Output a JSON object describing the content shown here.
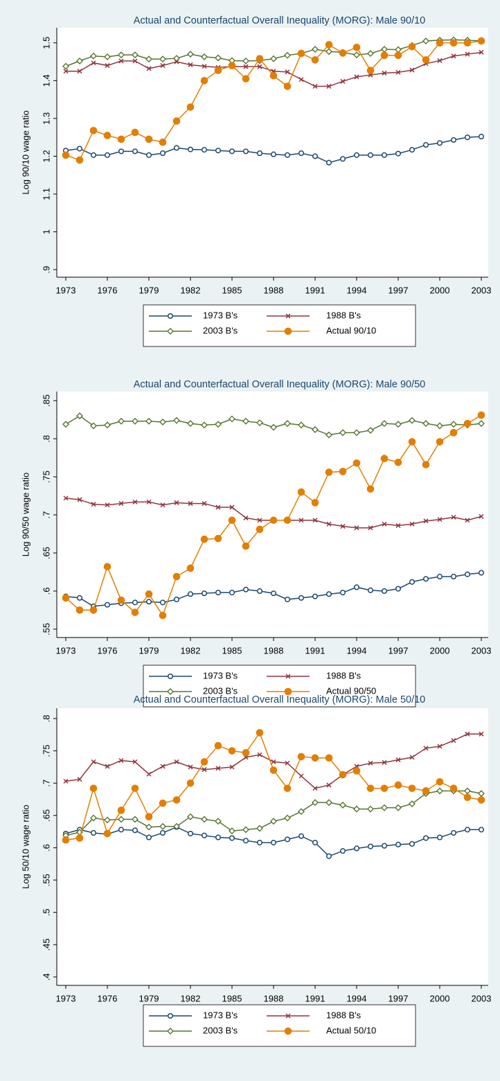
{
  "chart_data": [
    {
      "type": "line",
      "title": "Actual and Counterfactual Overall Inequality (MORG): Male 90/10",
      "y_label": "Log 90/10 wage ratio",
      "x": [
        1973,
        1974,
        1975,
        1976,
        1977,
        1978,
        1979,
        1980,
        1981,
        1982,
        1983,
        1984,
        1985,
        1986,
        1987,
        1988,
        1989,
        1990,
        1991,
        1992,
        1993,
        1994,
        1995,
        1996,
        1997,
        1998,
        1999,
        2000,
        2001,
        2002,
        2003
      ],
      "xlim": [
        1972.35,
        2003.5
      ],
      "xticks": [
        1973,
        1976,
        1979,
        1982,
        1985,
        1988,
        1991,
        1994,
        1997,
        2000,
        2003
      ],
      "ylim": [
        0.88,
        1.54
      ],
      "yticks": [
        {
          "value": 0.9,
          "label": ".9"
        },
        1,
        1.1,
        1.2,
        1.3,
        1.4,
        1.5
      ],
      "series": [
        {
          "name": "1973 B's",
          "color": "#1a476f",
          "values": [
            1.215,
            1.22,
            1.203,
            1.203,
            1.213,
            1.213,
            1.203,
            1.208,
            1.222,
            1.218,
            1.217,
            1.215,
            1.213,
            1.213,
            1.208,
            1.205,
            1.203,
            1.208,
            1.2,
            1.183,
            1.193,
            1.203,
            1.203,
            1.203,
            1.207,
            1.217,
            1.23,
            1.235,
            1.243,
            1.25,
            1.252
          ]
        },
        {
          "name": "1988 B's",
          "color": "#90353b",
          "values": [
            1.425,
            1.425,
            1.447,
            1.44,
            1.452,
            1.452,
            1.432,
            1.44,
            1.45,
            1.442,
            1.438,
            1.435,
            1.437,
            1.437,
            1.437,
            1.425,
            1.423,
            1.403,
            1.385,
            1.385,
            1.398,
            1.41,
            1.415,
            1.42,
            1.422,
            1.428,
            1.445,
            1.453,
            1.465,
            1.47,
            1.475
          ]
        },
        {
          "name": "2003 B's",
          "color": "#55752f",
          "values": [
            1.438,
            1.452,
            1.465,
            1.463,
            1.468,
            1.468,
            1.457,
            1.457,
            1.459,
            1.47,
            1.463,
            1.46,
            1.453,
            1.452,
            1.453,
            1.458,
            1.467,
            1.472,
            1.483,
            1.477,
            1.475,
            1.468,
            1.472,
            1.483,
            1.482,
            1.493,
            1.505,
            1.507,
            1.508,
            1.507,
            1.505
          ]
        },
        {
          "name": "Actual 90/10",
          "color": "#e37e00",
          "values": [
            1.203,
            1.19,
            1.268,
            1.255,
            1.245,
            1.263,
            1.245,
            1.237,
            1.293,
            1.33,
            1.4,
            1.427,
            1.44,
            1.405,
            1.458,
            1.413,
            1.385,
            1.472,
            1.455,
            1.495,
            1.473,
            1.488,
            1.427,
            1.467,
            1.467,
            1.49,
            1.455,
            1.5,
            1.5,
            1.5,
            1.505
          ]
        }
      ]
    },
    {
      "type": "line",
      "title": "Actual and Counterfactual Overall Inequality (MORG): Male 90/50",
      "y_label": "Log 90/50 wage ratio",
      "x": [
        1973,
        1974,
        1975,
        1976,
        1977,
        1978,
        1979,
        1980,
        1981,
        1982,
        1983,
        1984,
        1985,
        1986,
        1987,
        1988,
        1989,
        1990,
        1991,
        1992,
        1993,
        1994,
        1995,
        1996,
        1997,
        1998,
        1999,
        2000,
        2001,
        2002,
        2003
      ],
      "xlim": [
        1972.35,
        2003.5
      ],
      "xticks": [
        1973,
        1976,
        1979,
        1982,
        1985,
        1988,
        1991,
        1994,
        1997,
        2000,
        2003
      ],
      "ylim": [
        0.539,
        0.862
      ],
      "yticks": [
        {
          "value": 0.55,
          "label": ".55"
        },
        {
          "value": 0.6,
          "label": ".6"
        },
        {
          "value": 0.65,
          "label": ".65"
        },
        {
          "value": 0.7,
          "label": ".7"
        },
        {
          "value": 0.75,
          "label": ".75"
        },
        {
          "value": 0.8,
          "label": ".8"
        },
        {
          "value": 0.85,
          "label": ".85"
        }
      ],
      "series": [
        {
          "name": "1973 B's",
          "color": "#1a476f",
          "values": [
            0.593,
            0.591,
            0.58,
            0.582,
            0.584,
            0.585,
            0.586,
            0.585,
            0.589,
            0.596,
            0.597,
            0.598,
            0.598,
            0.602,
            0.6,
            0.597,
            0.589,
            0.591,
            0.593,
            0.596,
            0.598,
            0.605,
            0.601,
            0.6,
            0.603,
            0.612,
            0.616,
            0.619,
            0.619,
            0.622,
            0.624
          ]
        },
        {
          "name": "1988 B's",
          "color": "#90353b",
          "values": [
            0.722,
            0.72,
            0.714,
            0.713,
            0.715,
            0.717,
            0.717,
            0.713,
            0.716,
            0.715,
            0.715,
            0.71,
            0.71,
            0.696,
            0.693,
            0.693,
            0.693,
            0.693,
            0.693,
            0.688,
            0.685,
            0.683,
            0.683,
            0.688,
            0.686,
            0.688,
            0.692,
            0.694,
            0.697,
            0.693,
            0.698
          ]
        },
        {
          "name": "2003 B's",
          "color": "#55752f",
          "values": [
            0.819,
            0.83,
            0.817,
            0.818,
            0.823,
            0.823,
            0.823,
            0.822,
            0.824,
            0.82,
            0.818,
            0.819,
            0.826,
            0.823,
            0.821,
            0.815,
            0.82,
            0.818,
            0.812,
            0.805,
            0.808,
            0.808,
            0.811,
            0.82,
            0.819,
            0.824,
            0.82,
            0.817,
            0.819,
            0.818,
            0.82
          ]
        },
        {
          "name": "Actual 90/50",
          "color": "#e37e00",
          "values": [
            0.591,
            0.575,
            0.575,
            0.632,
            0.588,
            0.572,
            0.596,
            0.568,
            0.619,
            0.63,
            0.668,
            0.669,
            0.693,
            0.659,
            0.681,
            0.693,
            0.693,
            0.73,
            0.716,
            0.756,
            0.757,
            0.768,
            0.734,
            0.774,
            0.769,
            0.796,
            0.766,
            0.796,
            0.808,
            0.82,
            0.831
          ]
        }
      ]
    },
    {
      "type": "line",
      "title": "Actual and Counterfactual Overall Inequality (MORG): Male 50/10",
      "y_label": "Log 50/10 wage ratio",
      "x": [
        1973,
        1974,
        1975,
        1976,
        1977,
        1978,
        1979,
        1980,
        1981,
        1982,
        1983,
        1984,
        1985,
        1986,
        1987,
        1988,
        1989,
        1990,
        1991,
        1992,
        1993,
        1994,
        1995,
        1996,
        1997,
        1998,
        1999,
        2000,
        2001,
        2002,
        2003
      ],
      "xlim": [
        1972.35,
        2003.5
      ],
      "xticks": [
        1973,
        1976,
        1979,
        1982,
        1985,
        1988,
        1991,
        1994,
        1997,
        2000,
        2003
      ],
      "ylim": [
        0.387,
        0.816
      ],
      "yticks": [
        {
          "value": 0.4,
          "label": ".4"
        },
        {
          "value": 0.45,
          "label": ".45"
        },
        {
          "value": 0.5,
          "label": ".5"
        },
        {
          "value": 0.55,
          "label": ".55"
        },
        {
          "value": 0.6,
          "label": ".6"
        },
        {
          "value": 0.65,
          "label": ".65"
        },
        {
          "value": 0.7,
          "label": ".7"
        },
        {
          "value": 0.75,
          "label": ".75"
        },
        {
          "value": 0.8,
          "label": ".8"
        }
      ],
      "series": [
        {
          "name": "1973 B's",
          "color": "#1a476f",
          "values": [
            0.622,
            0.628,
            0.623,
            0.621,
            0.628,
            0.627,
            0.616,
            0.623,
            0.632,
            0.622,
            0.619,
            0.616,
            0.615,
            0.611,
            0.608,
            0.608,
            0.613,
            0.618,
            0.608,
            0.587,
            0.595,
            0.599,
            0.602,
            0.603,
            0.605,
            0.606,
            0.615,
            0.616,
            0.623,
            0.628,
            0.628
          ]
        },
        {
          "name": "1988 B's",
          "color": "#90353b",
          "values": [
            0.703,
            0.706,
            0.733,
            0.726,
            0.735,
            0.733,
            0.714,
            0.726,
            0.733,
            0.725,
            0.721,
            0.723,
            0.725,
            0.74,
            0.744,
            0.733,
            0.731,
            0.711,
            0.692,
            0.697,
            0.713,
            0.726,
            0.731,
            0.732,
            0.736,
            0.74,
            0.754,
            0.757,
            0.766,
            0.776,
            0.776
          ]
        },
        {
          "name": "2003 B's",
          "color": "#55752f",
          "values": [
            0.619,
            0.624,
            0.646,
            0.643,
            0.644,
            0.644,
            0.632,
            0.633,
            0.633,
            0.648,
            0.644,
            0.641,
            0.626,
            0.628,
            0.63,
            0.641,
            0.646,
            0.656,
            0.67,
            0.67,
            0.666,
            0.66,
            0.66,
            0.662,
            0.662,
            0.668,
            0.684,
            0.688,
            0.688,
            0.688,
            0.684
          ]
        },
        {
          "name": "Actual 50/10",
          "color": "#e37e00",
          "values": [
            0.612,
            0.615,
            0.692,
            0.622,
            0.658,
            0.692,
            0.648,
            0.669,
            0.674,
            0.7,
            0.733,
            0.758,
            0.75,
            0.747,
            0.778,
            0.72,
            0.692,
            0.741,
            0.739,
            0.739,
            0.713,
            0.719,
            0.692,
            0.692,
            0.697,
            0.692,
            0.688,
            0.702,
            0.692,
            0.678,
            0.674
          ]
        }
      ]
    }
  ]
}
